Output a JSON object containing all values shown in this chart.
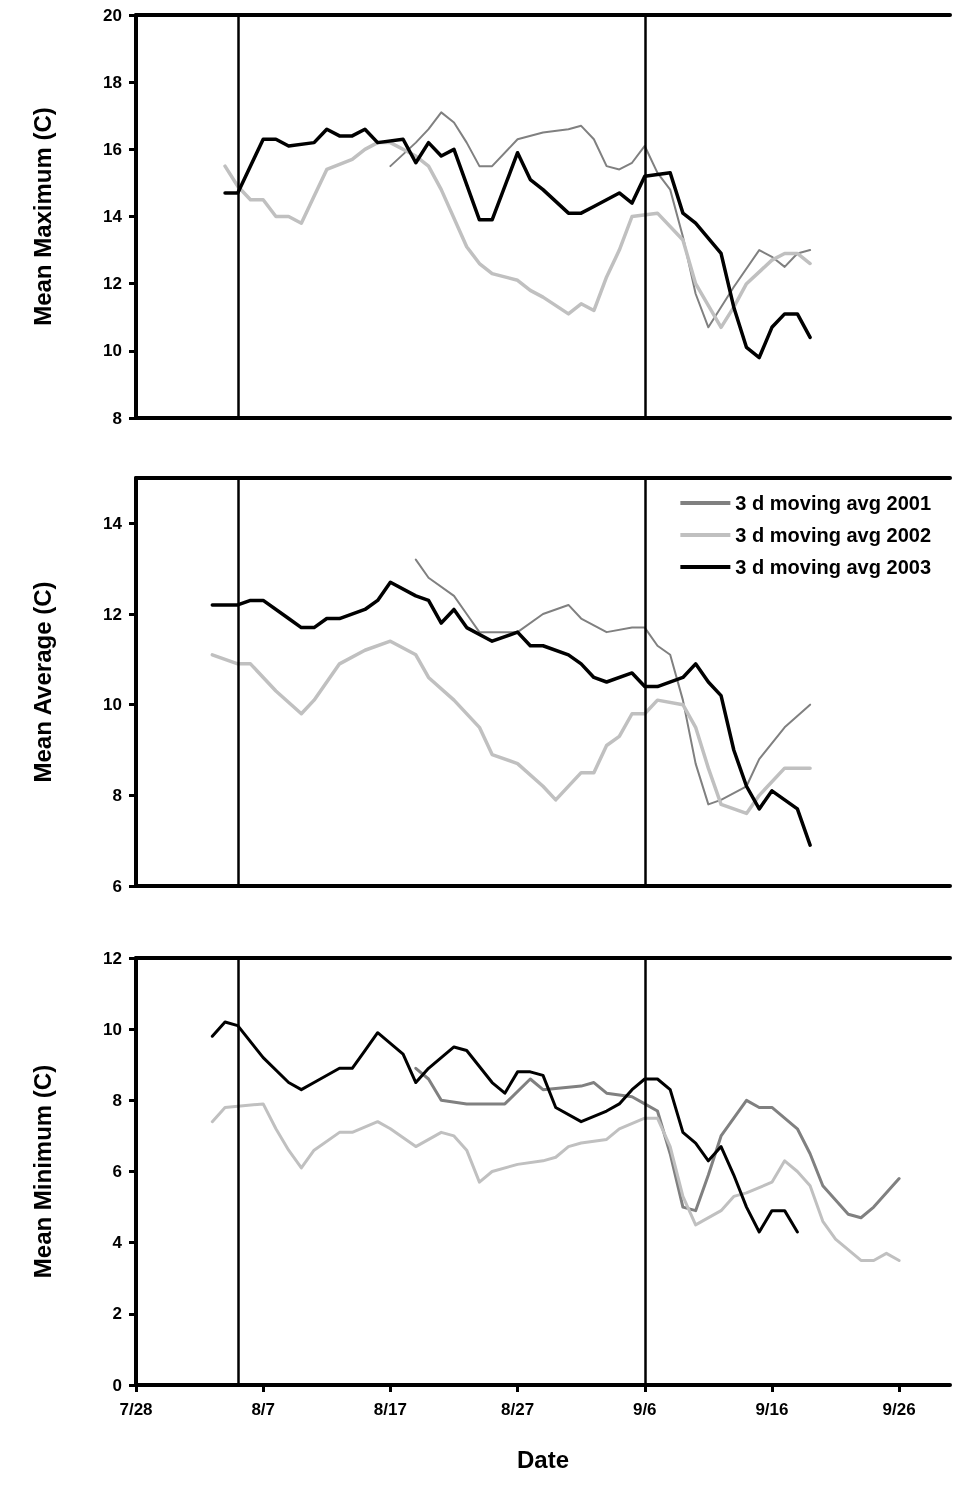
{
  "chart_data": [
    {
      "type": "line",
      "ylabel": "Mean Maximum (C)",
      "ylim": [
        8,
        20
      ],
      "yticks": [
        8,
        10,
        12,
        14,
        16,
        18,
        20
      ],
      "xlim": [
        "--07-28",
        "--09-30"
      ],
      "xticks": [
        {
          "value": "--07-28",
          "label": "7/28"
        },
        {
          "value": "--08-07",
          "label": "8/7"
        },
        {
          "value": "--08-17",
          "label": "8/17"
        },
        {
          "value": "--08-27",
          "label": "8/27"
        },
        {
          "value": "--09-06",
          "label": "9/6"
        },
        {
          "value": "--09-16",
          "label": "9/16"
        },
        {
          "value": "--09-26",
          "label": "9/26"
        }
      ],
      "tick_labels": "y",
      "legend": false,
      "ref_lines": [
        {
          "axis": "x",
          "value": "--08-05",
          "color": "#000000"
        },
        {
          "axis": "x",
          "value": "--09-06",
          "color": "#000000"
        }
      ],
      "series": [
        {
          "color": "#808080",
          "x": [
            "--08-17",
            "--08-19",
            "--08-20",
            "--08-21",
            "--08-22",
            "--08-23",
            "--08-24",
            "--08-25",
            "--08-27",
            "--08-29",
            "--08-31",
            "--09-01",
            "--09-02",
            "--09-03",
            "--09-04",
            "--09-05",
            "--09-06",
            "--09-07",
            "--09-08",
            "--09-09",
            "--09-10",
            "--09-11",
            "--09-13",
            "--09-15",
            "--09-16",
            "--09-17",
            "--09-18",
            "--09-19"
          ],
          "values": [
            15.5,
            16.2,
            16.6,
            17.1,
            16.8,
            16.2,
            15.5,
            15.5,
            16.3,
            16.5,
            16.6,
            16.7,
            16.3,
            15.5,
            15.4,
            15.6,
            16.1,
            15.3,
            14.8,
            13.4,
            11.7,
            10.7,
            11.9,
            13.0,
            12.8,
            12.5,
            12.9,
            13.0
          ]
        },
        {
          "color": "#c0c0c0",
          "x": [
            "--08-04",
            "--08-05",
            "--08-06",
            "--08-07",
            "--08-08",
            "--08-09",
            "--08-10",
            "--08-11",
            "--08-12",
            "--08-14",
            "--08-15",
            "--08-16",
            "--08-17",
            "--08-19",
            "--08-20",
            "--08-21",
            "--08-23",
            "--08-24",
            "--08-25",
            "--08-27",
            "--08-28",
            "--08-29",
            "--08-31",
            "--09-01",
            "--09-02",
            "--09-03",
            "--09-04",
            "--09-05",
            "--09-07",
            "--09-09",
            "--09-10",
            "--09-12",
            "--09-13",
            "--09-14",
            "--09-16",
            "--09-17",
            "--09-18",
            "--09-19"
          ],
          "values": [
            15.5,
            14.9,
            14.5,
            14.5,
            14.0,
            14.0,
            13.8,
            14.6,
            15.4,
            15.7,
            16.0,
            16.2,
            16.2,
            15.8,
            15.5,
            14.8,
            13.1,
            12.6,
            12.3,
            12.1,
            11.8,
            11.6,
            11.1,
            11.4,
            11.2,
            12.2,
            13.0,
            14.0,
            14.1,
            13.3,
            12.0,
            10.7,
            11.3,
            12.0,
            12.7,
            12.9,
            12.9,
            12.6
          ]
        },
        {
          "color": "#000000",
          "x": [
            "--08-04",
            "--08-05",
            "--08-07",
            "--08-08",
            "--08-09",
            "--08-11",
            "--08-12",
            "--08-13",
            "--08-14",
            "--08-15",
            "--08-16",
            "--08-18",
            "--08-19",
            "--08-20",
            "--08-21",
            "--08-22",
            "--08-24",
            "--08-25",
            "--08-27",
            "--08-28",
            "--08-29",
            "--08-31",
            "--09-01",
            "--09-02",
            "--09-04",
            "--09-05",
            "--09-06",
            "--09-08",
            "--09-09",
            "--09-10",
            "--09-12",
            "--09-13",
            "--09-14",
            "--09-15",
            "--09-16",
            "--09-17",
            "--09-18",
            "--09-19"
          ],
          "values": [
            14.7,
            14.7,
            16.3,
            16.3,
            16.1,
            16.2,
            16.6,
            16.4,
            16.4,
            16.6,
            16.2,
            16.3,
            15.6,
            16.2,
            15.8,
            16.0,
            13.9,
            13.9,
            15.9,
            15.1,
            14.8,
            14.1,
            14.1,
            14.3,
            14.7,
            14.4,
            15.2,
            15.3,
            14.1,
            13.8,
            12.9,
            11.3,
            10.1,
            9.8,
            10.7,
            11.1,
            11.1,
            10.4
          ]
        }
      ]
    },
    {
      "type": "line",
      "ylabel": "Mean Average (C)",
      "ylim": [
        6,
        15
      ],
      "yticks": [
        6,
        8,
        10,
        12,
        14
      ],
      "xlim": [
        "--07-28",
        "--09-30"
      ],
      "xticks": [
        {
          "value": "--07-28",
          "label": "7/28"
        },
        {
          "value": "--08-07",
          "label": "8/7"
        },
        {
          "value": "--08-17",
          "label": "8/17"
        },
        {
          "value": "--08-27",
          "label": "8/27"
        },
        {
          "value": "--09-06",
          "label": "9/6"
        },
        {
          "value": "--09-16",
          "label": "9/16"
        },
        {
          "value": "--09-26",
          "label": "9/26"
        }
      ],
      "tick_labels": "y",
      "legend": "top right",
      "ref_lines": [
        {
          "axis": "x",
          "value": "--08-05",
          "color": "#000000"
        },
        {
          "axis": "x",
          "value": "--09-06",
          "color": "#000000"
        }
      ],
      "series": [
        {
          "name": "3 d moving avg 2001",
          "color": "#808080",
          "x": [
            "--08-19",
            "--08-20",
            "--08-22",
            "--08-23",
            "--08-24",
            "--08-27",
            "--08-29",
            "--08-31",
            "--09-01",
            "--09-03",
            "--09-05",
            "--09-06",
            "--09-07",
            "--09-08",
            "--09-09",
            "--09-10",
            "--09-11",
            "--09-12",
            "--09-14",
            "--09-15",
            "--09-17",
            "--09-19"
          ],
          "values": [
            13.2,
            12.8,
            12.4,
            12.0,
            11.6,
            11.6,
            12.0,
            12.2,
            11.9,
            11.6,
            11.7,
            11.7,
            11.3,
            11.1,
            10.1,
            8.7,
            7.8,
            7.9,
            8.2,
            8.8,
            9.5,
            10.0
          ]
        },
        {
          "name": "3 d moving avg 2002",
          "color": "#c0c0c0",
          "x": [
            "--08-03",
            "--08-05",
            "--08-06",
            "--08-08",
            "--08-10",
            "--08-11",
            "--08-12",
            "--08-13",
            "--08-15",
            "--08-17",
            "--08-19",
            "--08-20",
            "--08-22",
            "--08-24",
            "--08-25",
            "--08-27",
            "--08-29",
            "--08-30",
            "--09-01",
            "--09-02",
            "--09-03",
            "--09-04",
            "--09-05",
            "--09-06",
            "--09-07",
            "--09-09",
            "--09-10",
            "--09-11",
            "--09-12",
            "--09-14",
            "--09-15",
            "--09-17",
            "--09-19"
          ],
          "values": [
            11.1,
            10.9,
            10.9,
            10.3,
            9.8,
            10.1,
            10.5,
            10.9,
            11.2,
            11.4,
            11.1,
            10.6,
            10.1,
            9.5,
            8.9,
            8.7,
            8.2,
            7.9,
            8.5,
            8.5,
            9.1,
            9.3,
            9.8,
            9.8,
            10.1,
            10.0,
            9.5,
            8.6,
            7.8,
            7.6,
            8.0,
            8.6,
            8.6
          ]
        },
        {
          "name": "3 d moving avg 2003",
          "color": "#000000",
          "x": [
            "--08-03",
            "--08-05",
            "--08-06",
            "--08-07",
            "--08-09",
            "--08-10",
            "--08-11",
            "--08-12",
            "--08-13",
            "--08-15",
            "--08-16",
            "--08-17",
            "--08-19",
            "--08-20",
            "--08-21",
            "--08-22",
            "--08-23",
            "--08-25",
            "--08-27",
            "--08-28",
            "--08-29",
            "--08-31",
            "--09-01",
            "--09-02",
            "--09-03",
            "--09-05",
            "--09-06",
            "--09-07",
            "--09-09",
            "--09-10",
            "--09-11",
            "--09-12",
            "--09-13",
            "--09-14",
            "--09-15",
            "--09-16",
            "--09-18",
            "--09-19"
          ],
          "values": [
            12.2,
            12.2,
            12.3,
            12.3,
            11.9,
            11.7,
            11.7,
            11.9,
            11.9,
            12.1,
            12.3,
            12.7,
            12.4,
            12.3,
            11.8,
            12.1,
            11.7,
            11.4,
            11.6,
            11.3,
            11.3,
            11.1,
            10.9,
            10.6,
            10.5,
            10.7,
            10.4,
            10.4,
            10.6,
            10.9,
            10.5,
            10.2,
            9.0,
            8.2,
            7.7,
            8.1,
            7.7,
            6.9
          ]
        }
      ]
    },
    {
      "type": "line",
      "ylabel": "Mean Minimum (C)",
      "xlabel": "Date",
      "ylim": [
        0,
        12
      ],
      "yticks": [
        0,
        2,
        4,
        6,
        8,
        10,
        12
      ],
      "xlim": [
        "--07-28",
        "--09-30"
      ],
      "xticks": [
        {
          "value": "--07-28",
          "label": "7/28"
        },
        {
          "value": "--08-07",
          "label": "8/7"
        },
        {
          "value": "--08-17",
          "label": "8/17"
        },
        {
          "value": "--08-27",
          "label": "8/27"
        },
        {
          "value": "--09-06",
          "label": "9/6"
        },
        {
          "value": "--09-16",
          "label": "9/16"
        },
        {
          "value": "--09-26",
          "label": "9/26"
        }
      ],
      "legend": false,
      "ref_lines": [
        {
          "axis": "x",
          "value": "--08-05",
          "color": "#000000"
        },
        {
          "axis": "x",
          "value": "--09-06",
          "color": "#000000"
        }
      ],
      "series": [
        {
          "color": "#808080",
          "x": [
            "--08-19",
            "--08-20",
            "--08-21",
            "--08-23",
            "--08-26",
            "--08-28",
            "--08-29",
            "--09-01",
            "--09-02",
            "--09-03",
            "--09-05",
            "--09-06",
            "--09-07",
            "--09-08",
            "--09-09",
            "--09-10",
            "--09-11",
            "--09-12",
            "--09-14",
            "--09-15",
            "--09-16",
            "--09-18",
            "--09-19",
            "--09-20",
            "--09-21",
            "--09-22",
            "--09-23",
            "--09-24",
            "--09-26"
          ],
          "values": [
            8.9,
            8.6,
            8.0,
            7.9,
            7.9,
            8.6,
            8.3,
            8.4,
            8.5,
            8.2,
            8.1,
            7.9,
            7.7,
            6.5,
            5.0,
            4.9,
            5.9,
            7.0,
            8.0,
            7.8,
            7.8,
            7.2,
            6.5,
            5.6,
            5.2,
            4.8,
            4.7,
            5.0,
            5.8
          ]
        },
        {
          "color": "#c0c0c0",
          "x": [
            "--08-03",
            "--08-04",
            "--08-07",
            "--08-08",
            "--08-09",
            "--08-10",
            "--08-11",
            "--08-13",
            "--08-14",
            "--08-16",
            "--08-17",
            "--08-19",
            "--08-21",
            "--08-22",
            "--08-23",
            "--08-24",
            "--08-25",
            "--08-27",
            "--08-29",
            "--08-30",
            "--08-31",
            "--09-01",
            "--09-03",
            "--09-04",
            "--09-06",
            "--09-07",
            "--09-08",
            "--09-09",
            "--09-10",
            "--09-12",
            "--09-13",
            "--09-14",
            "--09-16",
            "--09-17",
            "--09-18",
            "--09-19",
            "--09-20",
            "--09-21",
            "--09-23",
            "--09-24",
            "--09-25",
            "--09-26"
          ],
          "values": [
            7.4,
            7.8,
            7.9,
            7.2,
            6.6,
            6.1,
            6.6,
            7.1,
            7.1,
            7.4,
            7.2,
            6.7,
            7.1,
            7.0,
            6.6,
            5.7,
            6.0,
            6.2,
            6.3,
            6.4,
            6.7,
            6.8,
            6.9,
            7.2,
            7.5,
            7.5,
            6.7,
            5.3,
            4.5,
            4.9,
            5.3,
            5.4,
            5.7,
            6.3,
            6.0,
            5.6,
            4.6,
            4.1,
            3.5,
            3.5,
            3.7,
            3.5
          ]
        },
        {
          "color": "#000000",
          "x": [
            "--08-03",
            "--08-04",
            "--08-05",
            "--08-07",
            "--08-09",
            "--08-10",
            "--08-11",
            "--08-13",
            "--08-14",
            "--08-15",
            "--08-16",
            "--08-17",
            "--08-18",
            "--08-19",
            "--08-20",
            "--08-21",
            "--08-22",
            "--08-23",
            "--08-25",
            "--08-26",
            "--08-27",
            "--08-28",
            "--08-29",
            "--08-30",
            "--09-01",
            "--09-03",
            "--09-04",
            "--09-05",
            "--09-06",
            "--09-07",
            "--09-08",
            "--09-09",
            "--09-10",
            "--09-11",
            "--09-12",
            "--09-13",
            "--09-14",
            "--09-15",
            "--09-16",
            "--09-17",
            "--09-18"
          ],
          "values": [
            9.8,
            10.2,
            10.1,
            9.2,
            8.5,
            8.3,
            8.5,
            8.9,
            8.9,
            9.4,
            9.9,
            9.6,
            9.3,
            8.5,
            8.9,
            9.2,
            9.5,
            9.4,
            8.5,
            8.2,
            8.8,
            8.8,
            8.7,
            7.8,
            7.4,
            7.7,
            7.9,
            8.3,
            8.6,
            8.6,
            8.3,
            7.1,
            6.8,
            6.3,
            6.7,
            5.9,
            5.0,
            4.3,
            4.9,
            4.9,
            4.3
          ]
        }
      ]
    }
  ]
}
